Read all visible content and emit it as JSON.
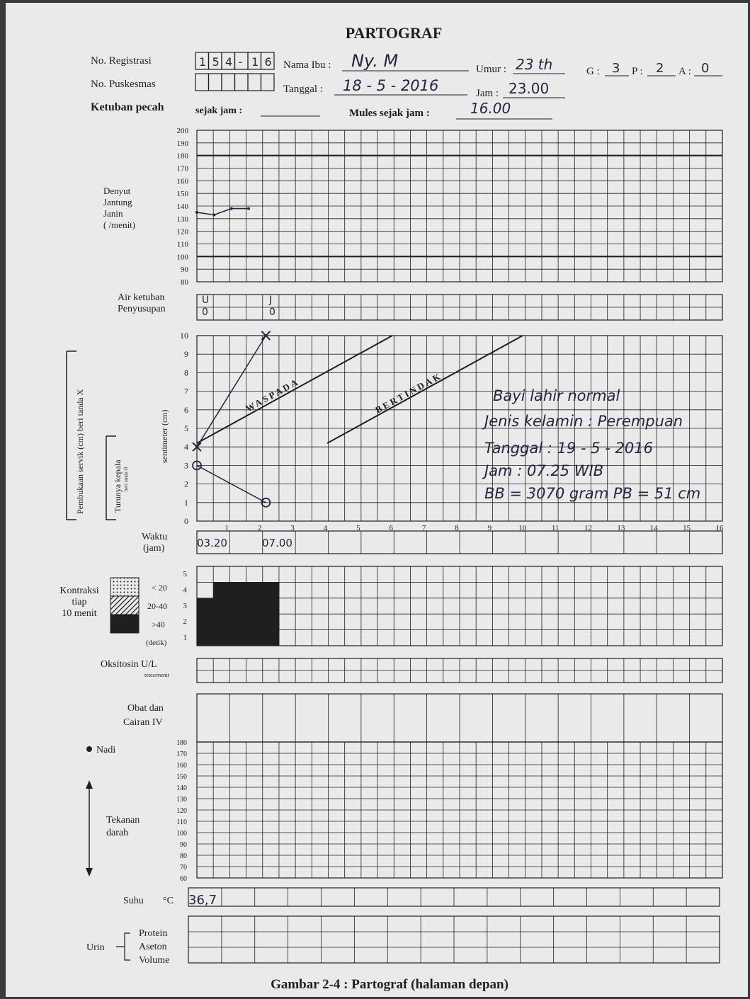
{
  "title": "PARTOGRAF",
  "header": {
    "registrasi_label": "No. Registrasi",
    "registrasi_boxes": [
      "1",
      "5",
      "4",
      "-",
      "1",
      "6"
    ],
    "puskesmas_label": "No. Puskesmas",
    "nama_label": "Nama Ibu :",
    "nama_value": "Ny. M",
    "umur_label": "Umur :",
    "umur_value": "23 th",
    "g_label": "G :",
    "g_value": "3",
    "p_label": "P :",
    "p_value": "2",
    "a_label": "A :",
    "a_value": "0",
    "tanggal_label": "Tanggal :",
    "tanggal_value": "18 - 5 - 2016",
    "jam_label": "Jam :",
    "jam_value": "23.00",
    "ketuban_label": "Ketuban pecah",
    "sejak_label": "sejak jam :",
    "mules_label": "Mules sejak  jam :",
    "mules_value": "16.00"
  },
  "fhr": {
    "label_lines": [
      "Denyut",
      "Jantung",
      "Janin",
      "(     /menit)"
    ],
    "ticks": [
      "200",
      "190",
      "180",
      "170",
      "160",
      "150",
      "140",
      "130",
      "120",
      "110",
      "100",
      "90",
      "80"
    ],
    "values": [
      135,
      133,
      138,
      138
    ]
  },
  "air_ketuban": {
    "label_lines": [
      "Air ketuban",
      "Penyusupan"
    ],
    "row1": [
      "U",
      "J"
    ],
    "row2": [
      "0",
      "0"
    ]
  },
  "cervix": {
    "side_label_1": "Pembukaan servik (cm) beri tanda X",
    "side_label_2": "Turunya kepala",
    "side_label_2b": "beri tanda O",
    "axis_label": "sentimeter (cm)",
    "ticks": [
      "10",
      "9",
      "8",
      "7",
      "6",
      "5",
      "4",
      "3",
      "2",
      "1",
      "0"
    ],
    "hour_ticks": [
      "1",
      "2",
      "3",
      "4",
      "5",
      "6",
      "7",
      "8",
      "9",
      "10",
      "11",
      "12",
      "13",
      "14",
      "15",
      "16"
    ],
    "waspada": "WASPADA",
    "bertindak": "BERTINDAK",
    "dilatation_x": [
      0,
      2.1
    ],
    "dilatation_cm": [
      4,
      10
    ],
    "descent_x": [
      0,
      2.1
    ],
    "descent_value": [
      3,
      1
    ],
    "note_lines": [
      "Bayi lahir normal",
      "Jenis kelamin : Perempuan",
      "Tanggal : 19 - 5 - 2016",
      "Jam      : 07.25 WIB",
      "BB  = 3070 gram  PB = 51 cm"
    ]
  },
  "waktu": {
    "label_lines": [
      "Waktu",
      "(jam)"
    ],
    "values": [
      "03.20",
      "07.00"
    ]
  },
  "kontraksi": {
    "label_lines": [
      "Kontraksi",
      "tiap",
      "10 menit"
    ],
    "legend": [
      "< 20",
      "20-40",
      ">40"
    ],
    "unit": "(detik)",
    "ticks": [
      "5",
      "4",
      "3",
      "2",
      "1"
    ],
    "counts": [
      3,
      4,
      4,
      4,
      4
    ]
  },
  "oksitosin": {
    "label": "Oksitosin U/L",
    "sub": "tetes/menit"
  },
  "obat": {
    "label_lines": [
      "Obat dan",
      "Cairan IV"
    ]
  },
  "nadi": {
    "label": "Nadi",
    "tekanan_lines": [
      "Tekanan",
      "darah"
    ],
    "ticks": [
      "180",
      "170",
      "160",
      "150",
      "140",
      "130",
      "120",
      "110",
      "100",
      "90",
      "80",
      "70",
      "60"
    ]
  },
  "suhu": {
    "label": "Suhu",
    "unit": "°C",
    "value": "36,7"
  },
  "urin": {
    "label": "Urin",
    "rows": [
      "Protein",
      "Aseton",
      "Volume"
    ]
  },
  "caption": "Gambar   2-4 :  Partograf (halaman depan)",
  "colors": {
    "paper": "#e9eaea",
    "ink": "#1f1f1f",
    "pen": "#262640"
  }
}
